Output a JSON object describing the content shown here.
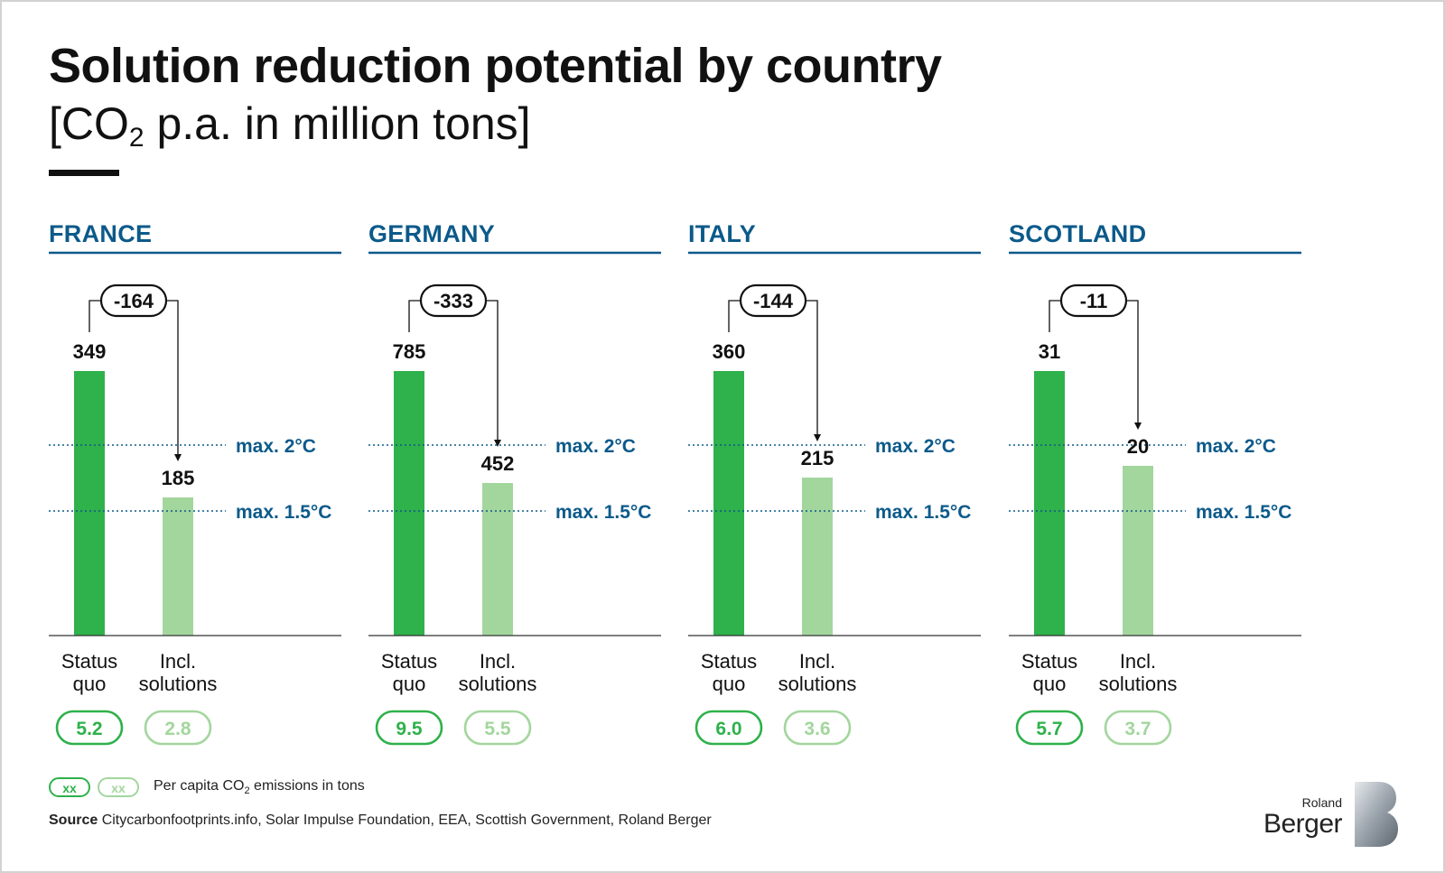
{
  "title": "Solution reduction potential by country",
  "subtitle_pre": "[CO",
  "subtitle_sub": "2",
  "subtitle_post": " p.a. in million tons]",
  "colors": {
    "status_quo": "#2fb14b",
    "incl_solutions": "#a3d69d",
    "accent": "#0c5a8a"
  },
  "chart_data": {
    "type": "bar",
    "categories": [
      "Status quo",
      "Incl. solutions"
    ],
    "category_lines": [
      [
        "Status",
        "quo"
      ],
      [
        "Incl.",
        "solutions"
      ]
    ],
    "thresholds": [
      {
        "label": "max. 2°C"
      },
      {
        "label": "max. 1.5°C"
      }
    ],
    "panels": [
      {
        "country": "FRANCE",
        "status_quo": 349,
        "incl_solutions": 185,
        "delta": "-164",
        "per_capita": [
          "5.2",
          "2.8"
        ]
      },
      {
        "country": "GERMANY",
        "status_quo": 785,
        "incl_solutions": 452,
        "delta": "-333",
        "per_capita": [
          "9.5",
          "5.5"
        ]
      },
      {
        "country": "ITALY",
        "status_quo": 360,
        "incl_solutions": 215,
        "delta": "-144",
        "per_capita": [
          "6.0",
          "3.6"
        ]
      },
      {
        "country": "SCOTLAND",
        "status_quo": 31,
        "incl_solutions": 20,
        "delta": "-11",
        "per_capita": [
          "5.7",
          "3.7"
        ]
      }
    ]
  },
  "legend": {
    "pill_text": "xx",
    "text_pre": "Per capita CO",
    "text_sub": "2",
    "text_post": " emissions in tons"
  },
  "source": {
    "label": "Source",
    "text": " Citycarbonfootprints.info, Solar Impulse Foundation, EEA, Scottish Government, Roland Berger"
  },
  "logo": {
    "line1": "Roland",
    "line2": "Berger"
  }
}
